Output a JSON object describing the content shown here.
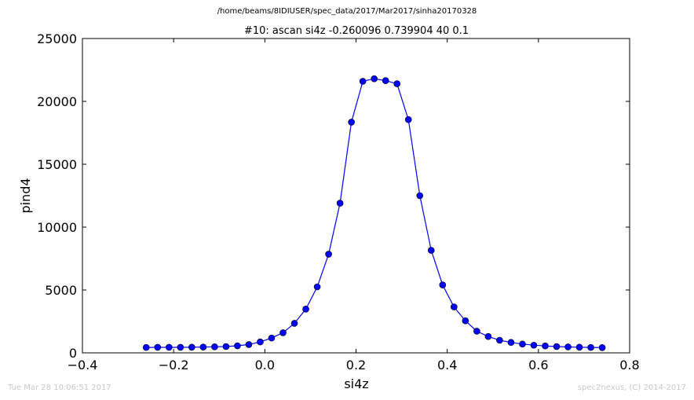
{
  "figure": {
    "suptitle": "/home/beams/8IDIUSER/spec_data/2017/Mar2017/sinha20170328",
    "timestamp": "Tue Mar 28 10:06:51 2017",
    "credit": "spec2nexus, (C) 2014-2017"
  },
  "chart_data": {
    "type": "line",
    "title": "#10: ascan  si4z -0.260096 0.739904  40 0.1",
    "xlabel": "si4z",
    "ylabel": "pind4",
    "xlim": [
      -0.4,
      0.8
    ],
    "ylim": [
      0,
      25000
    ],
    "xticks": [
      "−0.4",
      "−0.2",
      "0.0",
      "0.2",
      "0.4",
      "0.6",
      "0.8"
    ],
    "yticks": [
      "0",
      "5000",
      "10000",
      "15000",
      "20000",
      "25000"
    ],
    "grid": false,
    "legend": "none",
    "series": [
      {
        "color": "#0000ff",
        "marker": "circle",
        "x": [
          -0.2601,
          -0.2351,
          -0.2101,
          -0.1851,
          -0.1601,
          -0.1351,
          -0.1101,
          -0.0851,
          -0.0601,
          -0.0351,
          -0.0101,
          0.0149,
          0.0399,
          0.0649,
          0.0899,
          0.1149,
          0.1399,
          0.1649,
          0.1899,
          0.2149,
          0.2399,
          0.2649,
          0.2899,
          0.3149,
          0.3399,
          0.3649,
          0.3899,
          0.4149,
          0.4399,
          0.4649,
          0.4899,
          0.5149,
          0.5399,
          0.5649,
          0.5899,
          0.6149,
          0.6399,
          0.6649,
          0.6899,
          0.7149,
          0.7399
        ],
        "y": [
          430,
          440,
          440,
          440,
          450,
          460,
          480,
          500,
          560,
          660,
          870,
          1180,
          1600,
          2350,
          3480,
          5250,
          7850,
          11900,
          18350,
          21600,
          21800,
          21650,
          21400,
          18550,
          12500,
          8150,
          5400,
          3650,
          2550,
          1720,
          1300,
          1000,
          830,
          700,
          610,
          550,
          500,
          470,
          450,
          430,
          420
        ]
      }
    ]
  }
}
